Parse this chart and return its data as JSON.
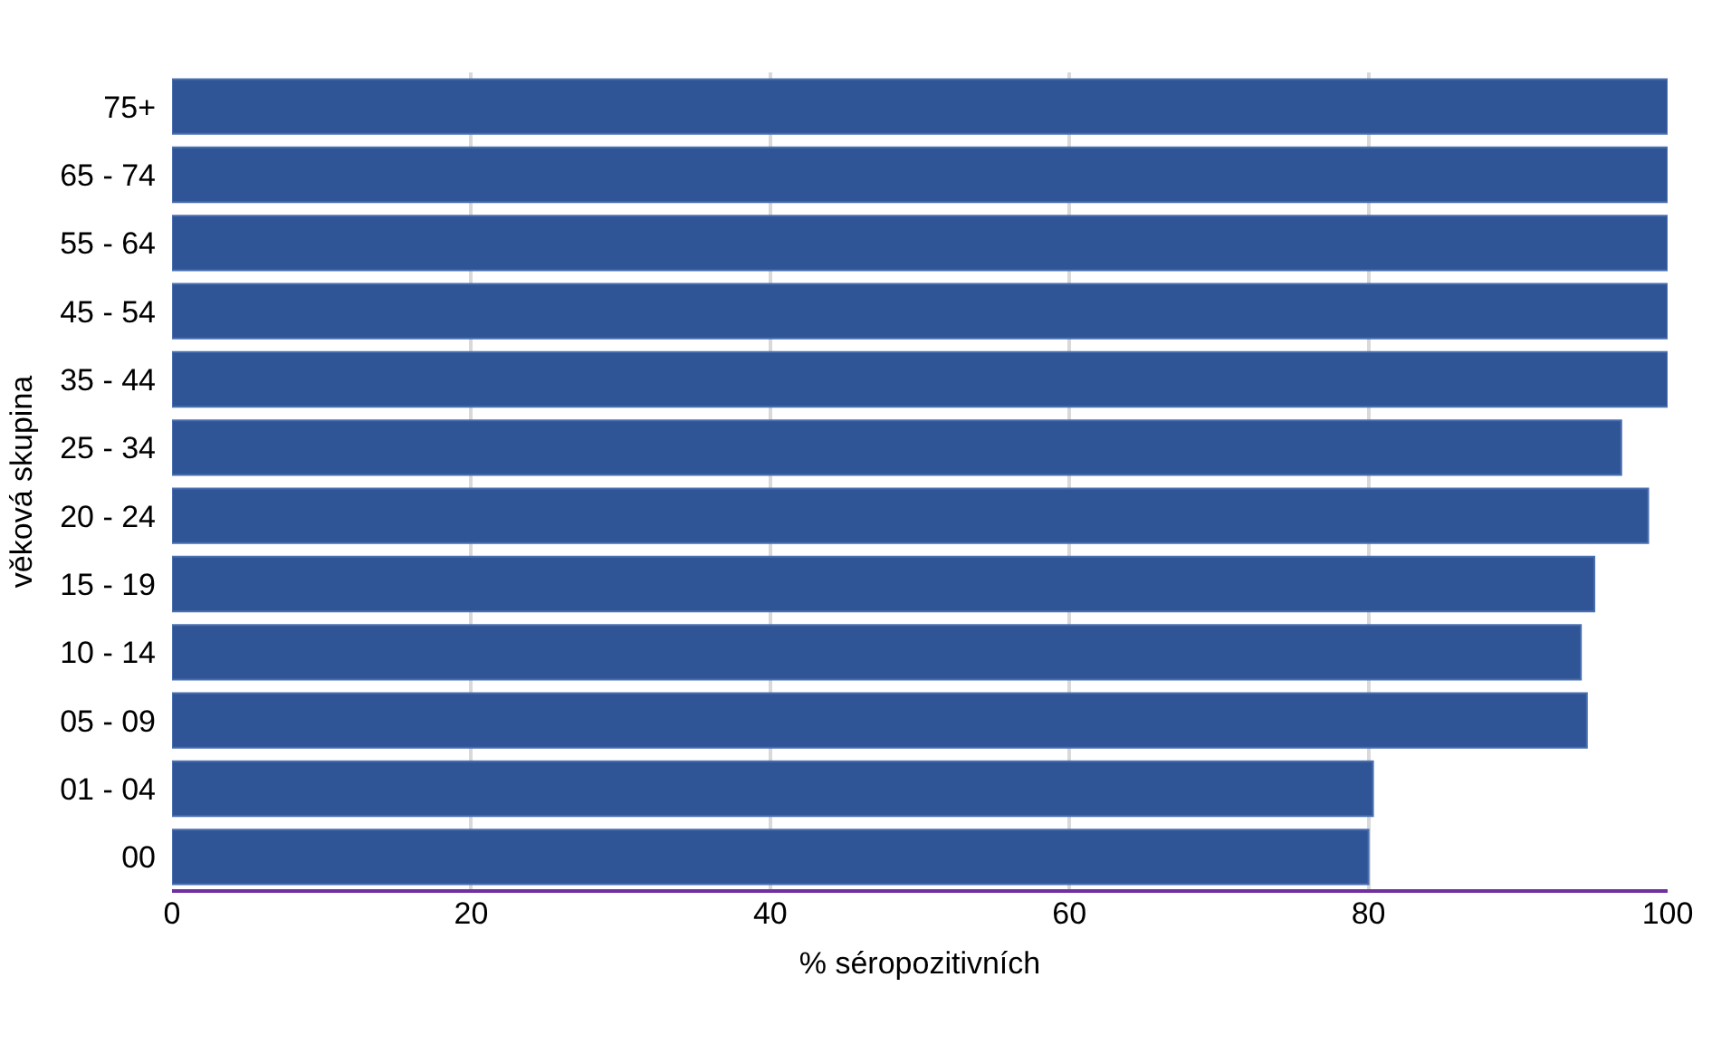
{
  "chart_data": {
    "type": "bar",
    "orientation": "horizontal",
    "xlabel": "% séropozitivních",
    "ylabel": "věková skupina",
    "categories": [
      "75+",
      "65 - 74",
      "55 - 64",
      "45 - 54",
      "35 - 44",
      "25 - 34",
      "20 - 24",
      "15 - 19",
      "10 - 14",
      "05 - 09",
      "01 - 04",
      "00"
    ],
    "values": [
      100,
      100,
      100,
      100,
      100,
      96.9,
      98.7,
      95.1,
      94.2,
      94.6,
      80.3,
      80.0
    ],
    "color": "#2f5597",
    "xlim": [
      0,
      100
    ],
    "xticks": [
      0,
      20,
      40,
      60,
      80,
      100
    ],
    "grid": "x",
    "legend": false
  }
}
